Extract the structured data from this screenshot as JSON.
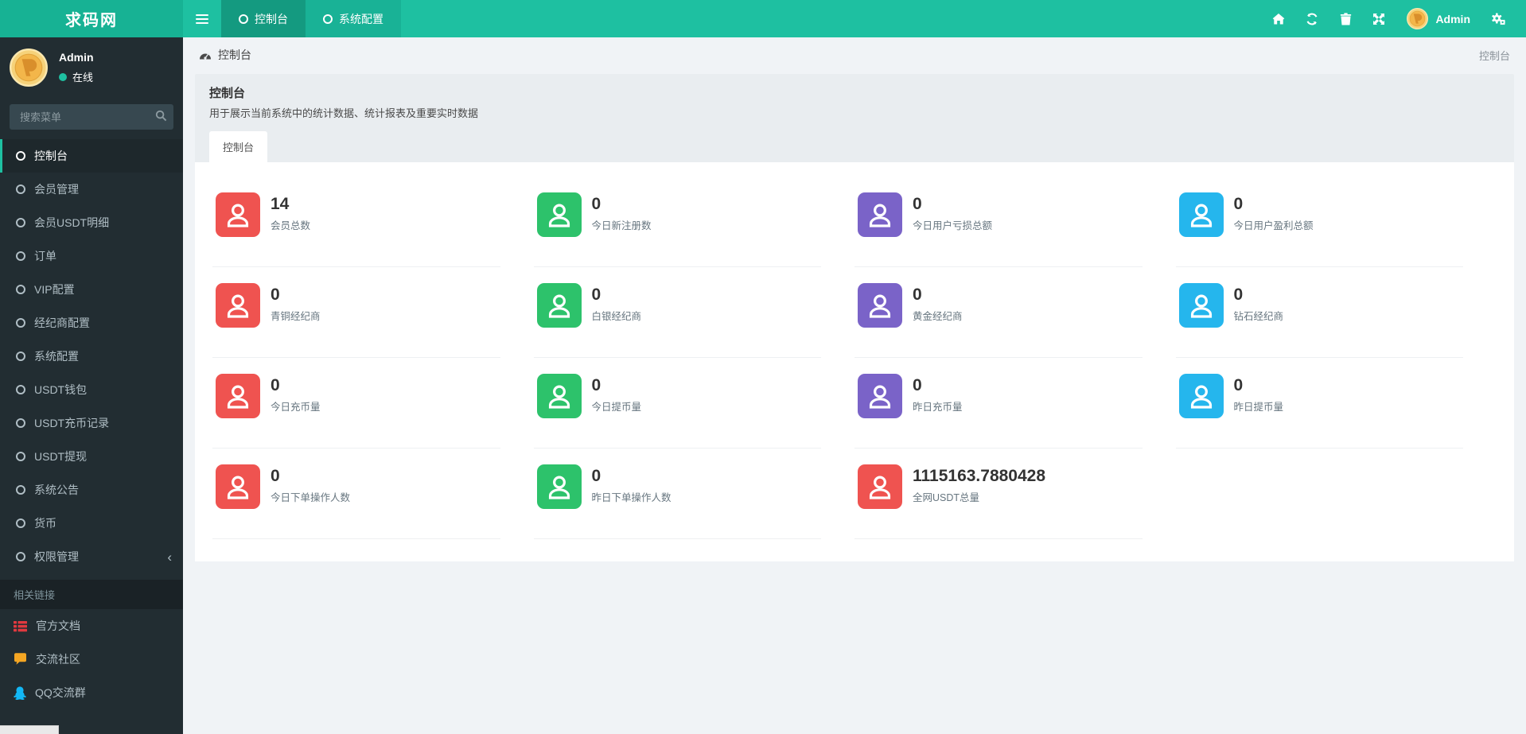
{
  "navbar": {
    "brand": "求码网",
    "tabs": [
      {
        "label": "控制台",
        "active": true
      },
      {
        "label": "系统配置",
        "active": false
      }
    ],
    "action_icons": [
      "home-icon",
      "refresh-icon",
      "trash-icon",
      "expand-icon",
      "settings-gears-icon"
    ],
    "user_name": "Admin"
  },
  "sidebar": {
    "user": {
      "name": "Admin",
      "status": "在线"
    },
    "search_placeholder": "搜索菜单",
    "menu": [
      {
        "label": "控制台",
        "active": true
      },
      {
        "label": "会员管理"
      },
      {
        "label": "会员USDT明细"
      },
      {
        "label": "订单"
      },
      {
        "label": "VIP配置"
      },
      {
        "label": "经纪商配置"
      },
      {
        "label": "系统配置"
      },
      {
        "label": "USDT钱包"
      },
      {
        "label": "USDT充币记录"
      },
      {
        "label": "USDT提现"
      },
      {
        "label": "系统公告"
      },
      {
        "label": "货币"
      },
      {
        "label": "权限管理",
        "chevron": "‹"
      }
    ],
    "section_label": "相关链接",
    "links": [
      {
        "label": "官方文档",
        "icon": "doc-list-icon"
      },
      {
        "label": "交流社区",
        "icon": "comment-icon"
      },
      {
        "label": "QQ交流群",
        "icon": "qq-penguin-icon"
      }
    ]
  },
  "breadcrumb": {
    "left": "控制台",
    "right": "控制台"
  },
  "panel": {
    "title": "控制台",
    "subtitle": "用于展示当前系统中的统计数据、统计报表及重要实时数据",
    "tab": "控制台"
  },
  "stats": [
    {
      "value": "14",
      "label": "会员总数",
      "color": "red"
    },
    {
      "value": "0",
      "label": "今日新注册数",
      "color": "green"
    },
    {
      "value": "0",
      "label": "今日用户亏损总额",
      "color": "purple"
    },
    {
      "value": "0",
      "label": "今日用户盈利总额",
      "color": "cyan"
    },
    {
      "value": "0",
      "label": "青铜经纪商",
      "color": "red"
    },
    {
      "value": "0",
      "label": "白银经纪商",
      "color": "green"
    },
    {
      "value": "0",
      "label": "黄金经纪商",
      "color": "purple"
    },
    {
      "value": "0",
      "label": "钻石经纪商",
      "color": "cyan"
    },
    {
      "value": "0",
      "label": "今日充币量",
      "color": "red"
    },
    {
      "value": "0",
      "label": "今日提币量",
      "color": "green"
    },
    {
      "value": "0",
      "label": "昨日充币量",
      "color": "purple"
    },
    {
      "value": "0",
      "label": "昨日提币量",
      "color": "cyan"
    },
    {
      "value": "0",
      "label": "今日下单操作人数",
      "color": "red"
    },
    {
      "value": "0",
      "label": "昨日下单操作人数",
      "color": "green"
    },
    {
      "value": "1115163.7880428",
      "label": "全网USDT总量",
      "color": "red"
    }
  ],
  "colors": {
    "accent": "#1ec0a1",
    "navbar_active": "#149a80",
    "sidebar_bg": "#222d32",
    "red": "#ef5350",
    "green": "#2dc26b",
    "purple": "#7a63c8",
    "cyan": "#25b6ed",
    "doc_icon": "#e0393f",
    "comment_icon": "#f5a623",
    "qq_icon": "#12b7f5"
  }
}
